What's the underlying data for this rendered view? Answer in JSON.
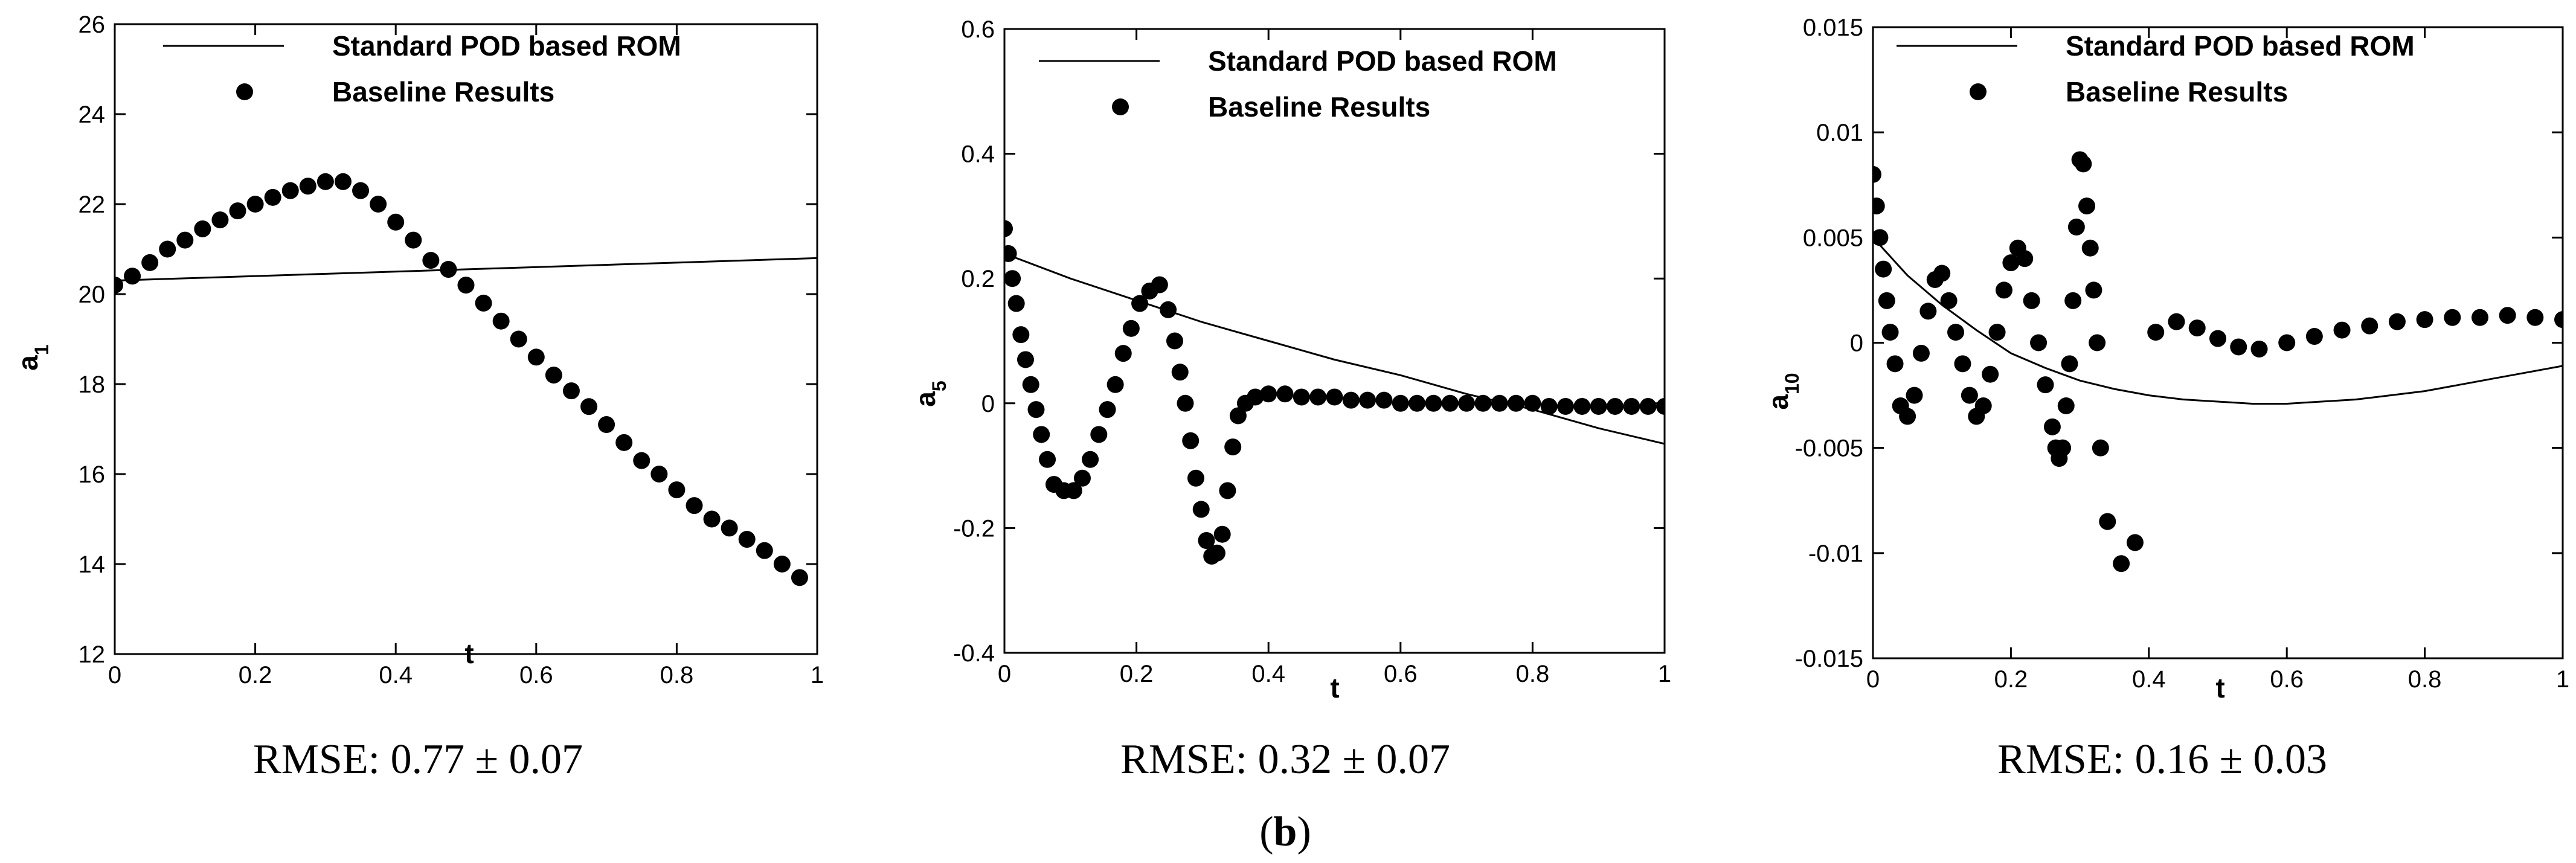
{
  "figure": {
    "panel_label": "b"
  },
  "captions": [
    "RMSE: 0.77 ± 0.07",
    "RMSE: 0.32 ± 0.07",
    "RMSE: 0.16 ± 0.03"
  ],
  "chart_data": [
    {
      "type": "line",
      "xlabel": "t",
      "ylabel": "a",
      "ylabel_sub": "1",
      "xlim": [
        0,
        1
      ],
      "ylim": [
        12,
        26
      ],
      "xticks": [
        0,
        0.2,
        0.4,
        0.6,
        0.8,
        1
      ],
      "xtick_labels": [
        "0",
        "0.2",
        "0.4",
        "0.6",
        "0.8",
        "1"
      ],
      "yticks": [
        12,
        14,
        16,
        18,
        20,
        22,
        24,
        26
      ],
      "ytick_labels": [
        "12",
        "14",
        "16",
        "18",
        "20",
        "22",
        "24",
        "26"
      ],
      "legend": {
        "placement": "top-right",
        "entries": [
          "Standard POD based ROM",
          "Baseline Results"
        ]
      },
      "series": [
        {
          "name": "Standard POD based ROM",
          "style": "line",
          "x": [
            0,
            1
          ],
          "y": [
            20.3,
            20.8
          ]
        },
        {
          "name": "Baseline Results",
          "style": "marker",
          "x": [
            0,
            0.025,
            0.05,
            0.075,
            0.1,
            0.125,
            0.15,
            0.175,
            0.2,
            0.225,
            0.25,
            0.275,
            0.3,
            0.325,
            0.35,
            0.375,
            0.4,
            0.425,
            0.45,
            0.475,
            0.5,
            0.525,
            0.55,
            0.575,
            0.6,
            0.625,
            0.65,
            0.675,
            0.7,
            0.725,
            0.75,
            0.775,
            0.8,
            0.825,
            0.85,
            0.875,
            0.9,
            0.925,
            0.95,
            0.975
          ],
          "y": [
            20.2,
            20.4,
            20.7,
            21.0,
            21.2,
            21.45,
            21.65,
            21.85,
            22.0,
            22.15,
            22.3,
            22.4,
            22.5,
            22.5,
            22.3,
            22.0,
            21.6,
            21.2,
            20.75,
            20.55,
            20.2,
            19.8,
            19.4,
            19.0,
            18.6,
            18.2,
            17.85,
            17.5,
            17.1,
            16.7,
            16.3,
            16.0,
            15.65,
            15.3,
            15.0,
            14.8,
            14.55,
            14.3,
            14.0,
            13.7
          ]
        }
      ]
    },
    {
      "type": "line",
      "xlabel": "t",
      "ylabel": "a",
      "ylabel_sub": "5",
      "xlim": [
        0,
        1
      ],
      "ylim": [
        -0.4,
        0.6
      ],
      "xticks": [
        0,
        0.2,
        0.4,
        0.6,
        0.8,
        1
      ],
      "xtick_labels": [
        "0",
        "0.2",
        "0.4",
        "0.6",
        "0.8",
        "1"
      ],
      "yticks": [
        -0.4,
        -0.2,
        0,
        0.2,
        0.4,
        0.6
      ],
      "ytick_labels": [
        "-0.4",
        "-0.2",
        "0",
        "0.2",
        "0.4",
        "0.6"
      ],
      "legend": {
        "placement": "top-right",
        "entries": [
          "Standard POD based ROM",
          "Baseline Results"
        ]
      },
      "series": [
        {
          "name": "Standard POD based ROM",
          "style": "line",
          "x": [
            0,
            0.1,
            0.2,
            0.3,
            0.4,
            0.5,
            0.6,
            0.7,
            0.8,
            0.9,
            1.0
          ],
          "y": [
            0.24,
            0.2,
            0.165,
            0.13,
            0.1,
            0.07,
            0.045,
            0.015,
            -0.01,
            -0.04,
            -0.065
          ]
        },
        {
          "name": "Baseline Results",
          "style": "marker",
          "x": [
            0.0,
            0.006,
            0.012,
            0.018,
            0.025,
            0.032,
            0.04,
            0.048,
            0.056,
            0.065,
            0.075,
            0.09,
            0.105,
            0.118,
            0.13,
            0.143,
            0.156,
            0.168,
            0.18,
            0.192,
            0.205,
            0.22,
            0.235,
            0.248,
            0.258,
            0.266,
            0.274,
            0.282,
            0.29,
            0.298,
            0.306,
            0.314,
            0.322,
            0.33,
            0.338,
            0.346,
            0.354,
            0.365,
            0.38,
            0.4,
            0.425,
            0.45,
            0.475,
            0.5,
            0.525,
            0.55,
            0.575,
            0.6,
            0.625,
            0.65,
            0.675,
            0.7,
            0.725,
            0.75,
            0.775,
            0.8,
            0.825,
            0.85,
            0.875,
            0.9,
            0.925,
            0.95,
            0.975,
            1.0
          ],
          "y": [
            0.28,
            0.24,
            0.2,
            0.16,
            0.11,
            0.07,
            0.03,
            -0.01,
            -0.05,
            -0.09,
            -0.13,
            -0.14,
            -0.14,
            -0.12,
            -0.09,
            -0.05,
            -0.01,
            0.03,
            0.08,
            0.12,
            0.16,
            0.18,
            0.19,
            0.15,
            0.1,
            0.05,
            0.0,
            -0.06,
            -0.12,
            -0.17,
            -0.22,
            -0.245,
            -0.24,
            -0.21,
            -0.14,
            -0.07,
            -0.02,
            0.0,
            0.01,
            0.015,
            0.015,
            0.01,
            0.01,
            0.01,
            0.005,
            0.005,
            0.005,
            0.0,
            0.0,
            0.0,
            0.0,
            0.0,
            0.0,
            0.0,
            0.0,
            0.0,
            -0.005,
            -0.005,
            -0.005,
            -0.005,
            -0.005,
            -0.005,
            -0.005,
            -0.005
          ]
        }
      ]
    },
    {
      "type": "line",
      "xlabel": "t",
      "ylabel": "a",
      "ylabel_sub": "10",
      "xlim": [
        0,
        1
      ],
      "ylim": [
        -0.015,
        0.015
      ],
      "xticks": [
        0,
        0.2,
        0.4,
        0.6,
        0.8,
        1
      ],
      "xtick_labels": [
        "0",
        "0.2",
        "0.4",
        "0.6",
        "0.8",
        "1"
      ],
      "yticks": [
        -0.015,
        -0.01,
        -0.005,
        0,
        0.005,
        0.01,
        0.015
      ],
      "ytick_labels": [
        "-0.015",
        "-0.01",
        "-0.005",
        "0",
        "0.005",
        "0.01",
        "0.015"
      ],
      "legend": {
        "placement": "top-right",
        "entries": [
          "Standard POD based ROM",
          "Baseline Results"
        ]
      },
      "series": [
        {
          "name": "Standard POD based ROM",
          "style": "line",
          "x": [
            0,
            0.05,
            0.1,
            0.15,
            0.2,
            0.25,
            0.3,
            0.35,
            0.4,
            0.45,
            0.5,
            0.55,
            0.6,
            0.65,
            0.7,
            0.75,
            0.8,
            0.85,
            0.9,
            0.95,
            1.0
          ],
          "y": [
            0.005,
            0.0032,
            0.0018,
            0.0006,
            -0.0005,
            -0.0012,
            -0.0018,
            -0.0022,
            -0.0025,
            -0.0027,
            -0.0028,
            -0.0029,
            -0.0029,
            -0.0028,
            -0.0027,
            -0.0025,
            -0.0023,
            -0.002,
            -0.0017,
            -0.0014,
            -0.0011
          ]
        },
        {
          "name": "Baseline Results",
          "style": "marker",
          "x": [
            0.0,
            0.005,
            0.01,
            0.015,
            0.02,
            0.025,
            0.032,
            0.04,
            0.05,
            0.06,
            0.07,
            0.08,
            0.09,
            0.1,
            0.11,
            0.12,
            0.13,
            0.14,
            0.15,
            0.16,
            0.17,
            0.18,
            0.19,
            0.2,
            0.21,
            0.22,
            0.23,
            0.24,
            0.25,
            0.26,
            0.265,
            0.27,
            0.275,
            0.28,
            0.285,
            0.29,
            0.295,
            0.3,
            0.305,
            0.31,
            0.315,
            0.32,
            0.325,
            0.33,
            0.34,
            0.36,
            0.38,
            0.41,
            0.44,
            0.47,
            0.5,
            0.53,
            0.56,
            0.6,
            0.64,
            0.68,
            0.72,
            0.76,
            0.8,
            0.84,
            0.88,
            0.92,
            0.96,
            1.0
          ],
          "y": [
            0.008,
            0.0065,
            0.005,
            0.0035,
            0.002,
            0.0005,
            -0.001,
            -0.003,
            -0.0035,
            -0.0025,
            -0.0005,
            0.0015,
            0.003,
            0.0033,
            0.002,
            0.0005,
            -0.001,
            -0.0025,
            -0.0035,
            -0.003,
            -0.0015,
            0.0005,
            0.0025,
            0.0038,
            0.0045,
            0.004,
            0.002,
            0.0,
            -0.002,
            -0.004,
            -0.005,
            -0.0055,
            -0.005,
            -0.003,
            -0.001,
            0.002,
            0.0055,
            0.0087,
            0.0085,
            0.0065,
            0.0045,
            0.0025,
            0.0,
            -0.005,
            -0.0085,
            -0.0105,
            -0.0095,
            0.0005,
            0.001,
            0.0007,
            0.0002,
            -0.0002,
            -0.0003,
            0.0,
            0.0003,
            0.0006,
            0.0008,
            0.001,
            0.0011,
            0.0012,
            0.0012,
            0.0013,
            0.0012,
            0.0011
          ]
        }
      ]
    }
  ]
}
